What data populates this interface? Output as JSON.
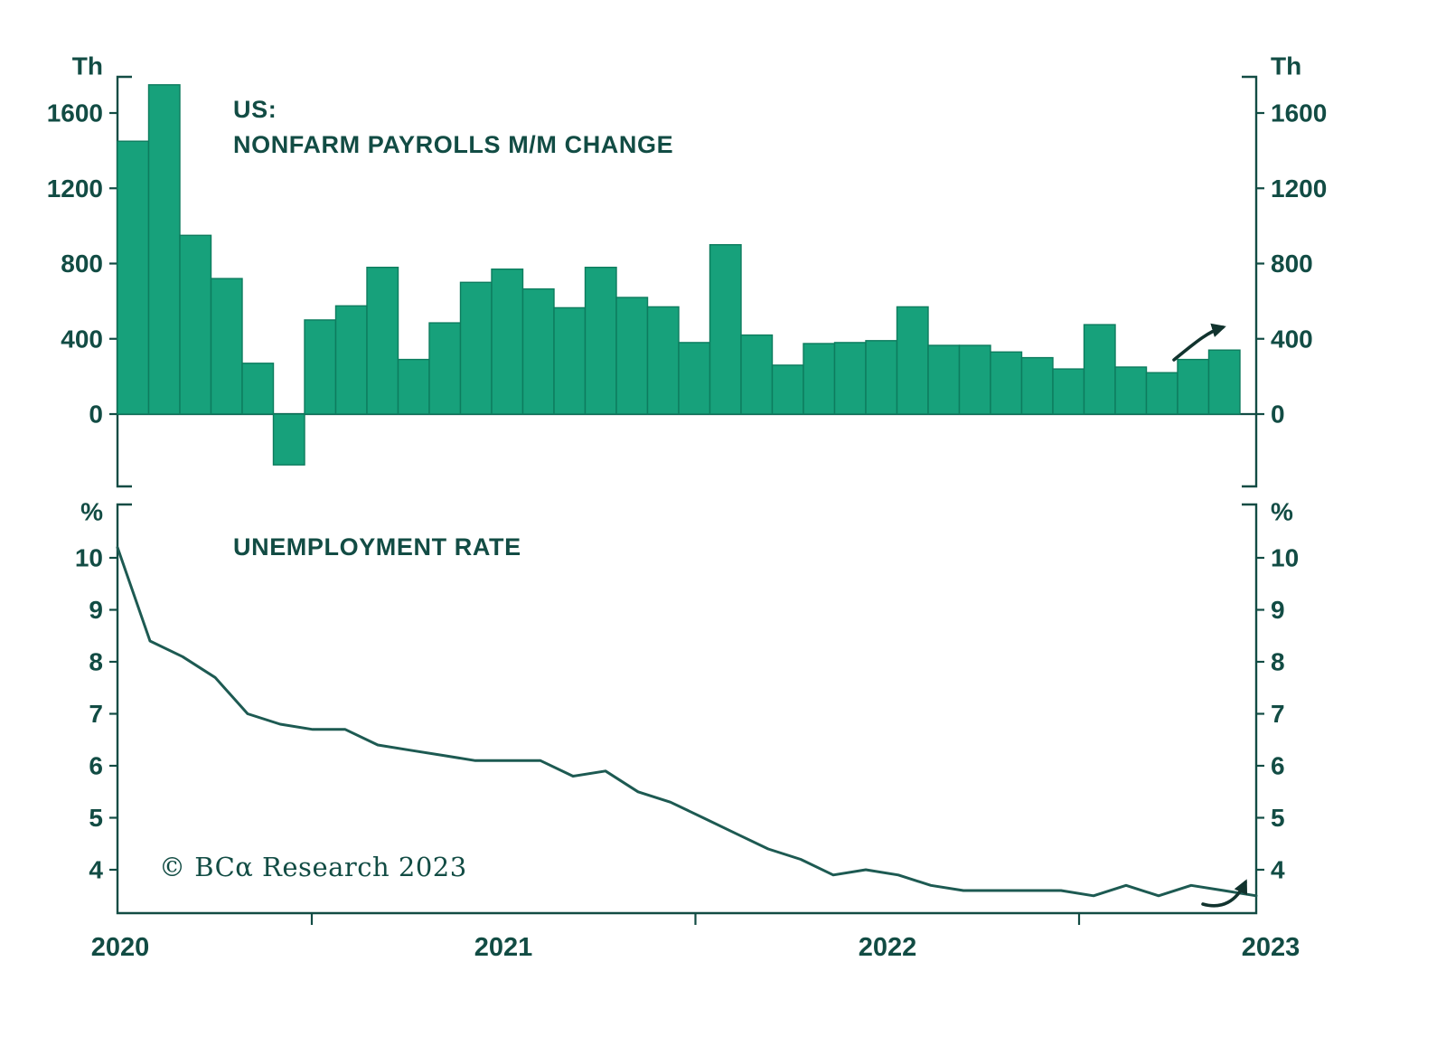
{
  "colors": {
    "text": "#124c44",
    "axis": "#124c44",
    "bar_fill": "#17a17b",
    "bar_stroke": "#0d7c5e",
    "line": "#1d5a52",
    "arrow": "#11332e",
    "background": "#ffffff"
  },
  "footer": {
    "copyright": "© BCα Research 2023"
  },
  "icons": {
    "payrolls_trend_arrow": "curved-right-arrow",
    "unemployment_trend_arrow": "curved-up-right-arrow"
  },
  "x_axis": {
    "labels": [
      "2020",
      "2021",
      "2022",
      "2023"
    ]
  },
  "chart_data": [
    {
      "type": "bar",
      "title": "US:",
      "subtitle": "NONFARM PAYROLLS M/M CHANGE",
      "unit": "Th",
      "yticks": [
        0,
        400,
        800,
        1200,
        1600
      ],
      "ylim": [
        -400,
        1800
      ],
      "grid": false,
      "legend_position": "none",
      "months": [
        "2020-01",
        "2020-02",
        "2020-03",
        "2020-04",
        "2020-05",
        "2020-06",
        "2020-07",
        "2020-08",
        "2020-09",
        "2020-10",
        "2020-11",
        "2020-12",
        "2021-01",
        "2021-02",
        "2021-03",
        "2021-04",
        "2021-05",
        "2021-06",
        "2021-07",
        "2021-08",
        "2021-09",
        "2021-10",
        "2021-11",
        "2021-12",
        "2022-01",
        "2022-02",
        "2022-03",
        "2022-04",
        "2022-05",
        "2022-06",
        "2022-07",
        "2022-08",
        "2022-09",
        "2022-10",
        "2022-11",
        "2022-12"
      ],
      "values": [
        1450,
        1750,
        950,
        720,
        270,
        -270,
        500,
        575,
        780,
        290,
        485,
        700,
        770,
        665,
        565,
        780,
        620,
        570,
        380,
        900,
        420,
        260,
        375,
        380,
        390,
        570,
        365,
        365,
        330,
        300,
        240,
        475,
        250,
        220,
        290,
        340
      ]
    },
    {
      "type": "line",
      "title": "UNEMPLOYMENT RATE",
      "unit": "%",
      "yticks": [
        4,
        5,
        6,
        7,
        8,
        9,
        10
      ],
      "ylim": [
        3.2,
        11
      ],
      "grid": false,
      "legend_position": "none",
      "months": [
        "2020-01",
        "2020-02",
        "2020-03",
        "2020-04",
        "2020-05",
        "2020-06",
        "2020-07",
        "2020-08",
        "2020-09",
        "2020-10",
        "2020-11",
        "2020-12",
        "2021-01",
        "2021-02",
        "2021-03",
        "2021-04",
        "2021-05",
        "2021-06",
        "2021-07",
        "2021-08",
        "2021-09",
        "2021-10",
        "2021-11",
        "2021-12",
        "2022-01",
        "2022-02",
        "2022-03",
        "2022-04",
        "2022-05",
        "2022-06",
        "2022-07",
        "2022-08",
        "2022-09",
        "2022-10",
        "2022-11",
        "2022-12"
      ],
      "values": [
        10.2,
        8.4,
        8.1,
        7.7,
        7.0,
        6.8,
        6.7,
        6.7,
        6.4,
        6.3,
        6.2,
        6.1,
        6.1,
        6.1,
        5.8,
        5.9,
        5.5,
        5.3,
        5.0,
        4.7,
        4.4,
        4.2,
        3.9,
        4.0,
        3.9,
        3.7,
        3.6,
        3.6,
        3.6,
        3.6,
        3.5,
        3.7,
        3.5,
        3.7,
        3.6,
        3.5
      ]
    }
  ]
}
